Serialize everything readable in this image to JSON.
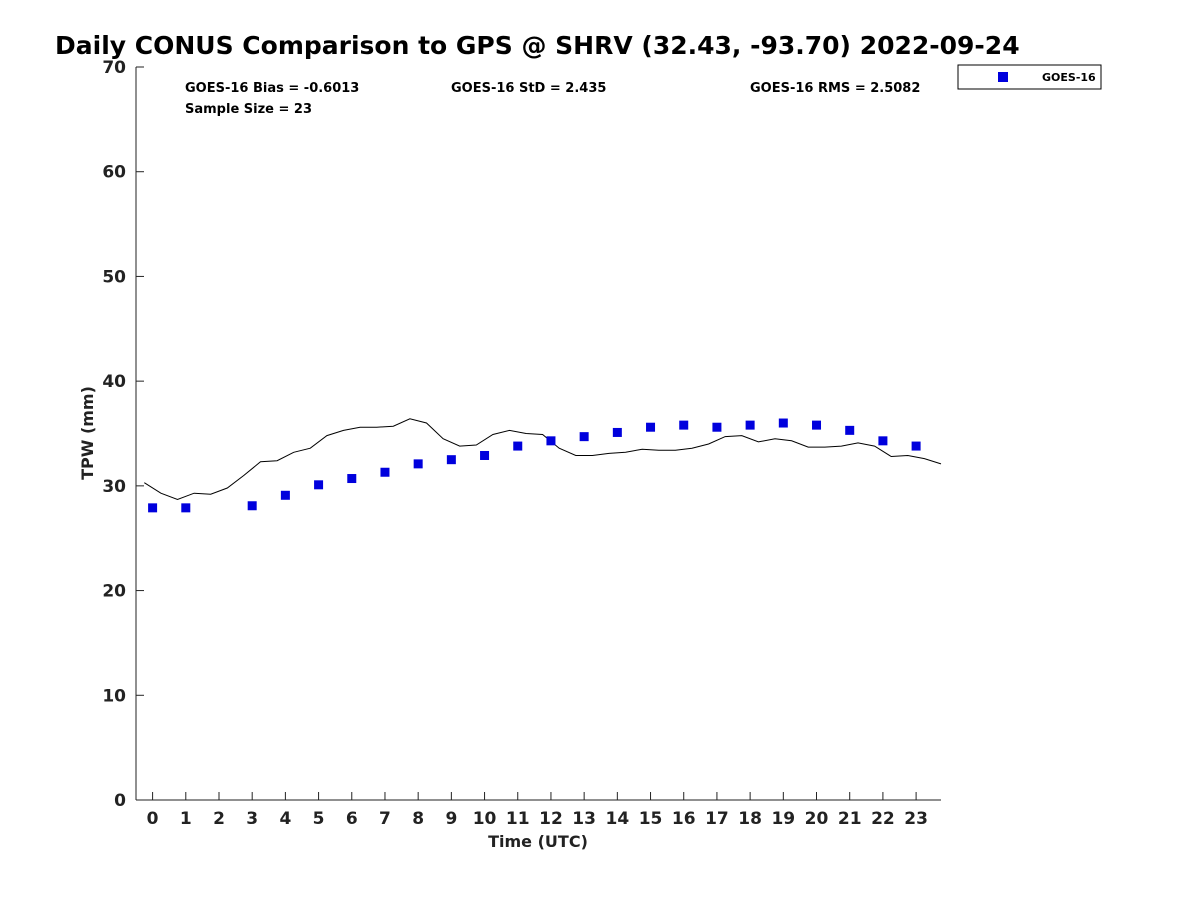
{
  "chart_data": {
    "type": "scatter",
    "title": "Daily CONUS Comparison to GPS @ SHRV (32.43, -93.70) 2022-09-24",
    "xlabel": "Time (UTC)",
    "ylabel": "TPW (mm)",
    "xlim": [
      -0.5,
      23.75
    ],
    "ylim": [
      0,
      70
    ],
    "x_ticks": [
      0,
      1,
      2,
      3,
      4,
      5,
      6,
      7,
      8,
      9,
      10,
      11,
      12,
      13,
      14,
      15,
      16,
      17,
      18,
      19,
      20,
      21,
      22,
      23
    ],
    "y_ticks": [
      0,
      10,
      20,
      30,
      40,
      50,
      60,
      70
    ],
    "grid": false,
    "legend_position": "top-right",
    "stats": {
      "bias": "GOES-16 Bias = -0.6013",
      "std": "GOES-16 StD = 2.435",
      "rms": "GOES-16 RMS = 2.5082",
      "sample": "Sample Size = 23"
    },
    "series": [
      {
        "name": "GOES-16",
        "kind": "markers",
        "color": "#0000dd",
        "x": [
          0,
          1,
          3,
          4,
          5,
          6,
          7,
          8,
          9,
          10,
          11,
          12,
          13,
          14,
          15,
          16,
          17,
          18,
          19,
          20,
          21,
          22,
          23
        ],
        "y": [
          27.9,
          27.9,
          28.1,
          29.1,
          30.1,
          30.7,
          31.3,
          32.1,
          32.5,
          32.9,
          33.8,
          34.3,
          34.7,
          35.1,
          35.6,
          35.8,
          35.6,
          35.8,
          36.0,
          35.8,
          35.3,
          34.3,
          33.8
        ]
      },
      {
        "kind": "line",
        "color": "#000000",
        "x": [
          -0.25,
          0.25,
          0.75,
          1.25,
          1.75,
          2.25,
          2.75,
          3.25,
          3.75,
          4.25,
          4.75,
          5.25,
          5.75,
          6.25,
          6.75,
          7.25,
          7.75,
          8.25,
          8.75,
          9.25,
          9.75,
          10.25,
          10.75,
          11.25,
          11.75,
          12.25,
          12.75,
          13.25,
          13.75,
          14.25,
          14.75,
          15.25,
          15.75,
          16.25,
          16.75,
          17.25,
          17.75,
          18.25,
          18.75,
          19.25,
          19.75,
          20.25,
          20.75,
          21.25,
          21.75,
          22.25,
          22.75,
          23.25,
          23.75
        ],
        "y": [
          30.3,
          29.3,
          28.7,
          29.3,
          29.2,
          29.8,
          31.0,
          32.3,
          32.4,
          33.2,
          33.6,
          34.8,
          35.3,
          35.6,
          35.6,
          35.7,
          36.4,
          36.0,
          34.5,
          33.8,
          33.9,
          34.9,
          35.3,
          35.0,
          34.9,
          33.6,
          32.9,
          32.9,
          33.1,
          33.2,
          33.5,
          33.4,
          33.4,
          33.6,
          34.0,
          34.7,
          34.8,
          34.2,
          34.5,
          34.3,
          33.7,
          33.7,
          33.8,
          34.1,
          33.8,
          32.8,
          32.9,
          32.6,
          32.1
        ]
      }
    ]
  }
}
